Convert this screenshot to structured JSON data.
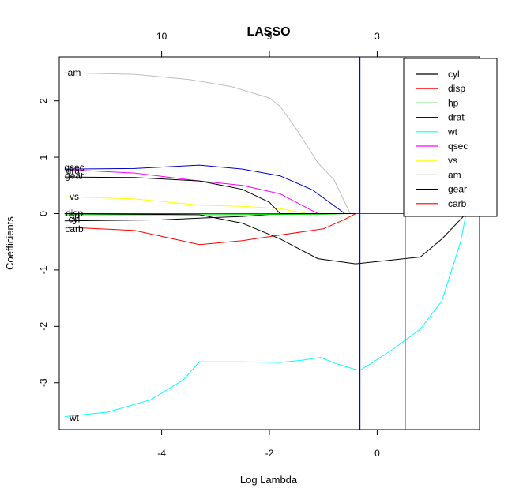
{
  "chart_data": {
    "type": "line",
    "title": "LASSO",
    "xlabel": "Log Lambda",
    "ylabel": "Coefficients",
    "xlim": [
      -5.9,
      1.9
    ],
    "ylim": [
      -3.83,
      2.78
    ],
    "x_ticks": [
      -4,
      -2,
      0
    ],
    "x_tick_labels": [
      "-4",
      "-2",
      "0"
    ],
    "y_ticks": [
      -3,
      -2,
      -1,
      0,
      1,
      2
    ],
    "y_tick_labels": [
      "-3",
      "-2",
      "-1",
      "0",
      "1",
      "2"
    ],
    "top_axis": {
      "ticks": [
        -4,
        -2,
        0
      ],
      "tick_labels": [
        "10",
        "9",
        "3"
      ]
    },
    "vlines": [
      {
        "x": -0.32,
        "color": "#0000ff"
      },
      {
        "x": 0.52,
        "color": "#cd0000"
      }
    ],
    "grid": false,
    "legend_position": "top-right",
    "series": [
      {
        "name": "cyl",
        "color": "#000000",
        "points": [
          [
            -5.8,
            -0.13
          ],
          [
            -4.0,
            -0.11
          ],
          [
            -3.3,
            -0.08
          ],
          [
            -2.5,
            -0.05
          ],
          [
            -1.8,
            0.0
          ],
          [
            1.9,
            0.0
          ]
        ],
        "label": "cyl",
        "label_y": -0.1
      },
      {
        "name": "disp",
        "color": "#ff0000",
        "points": [
          [
            -5.8,
            0.0
          ],
          [
            1.9,
            0.0
          ]
        ],
        "label": "disp",
        "label_y": 0.01
      },
      {
        "name": "hp",
        "color": "#00cd00",
        "points": [
          [
            -5.8,
            -0.02
          ],
          [
            -3.0,
            -0.02
          ],
          [
            -1.0,
            -0.01
          ],
          [
            -0.5,
            0.0
          ],
          [
            1.9,
            0.0
          ]
        ],
        "label": "hp",
        "label_y": -0.03
      },
      {
        "name": "drat",
        "color": "#0000cd",
        "points": [
          [
            -5.8,
            0.79
          ],
          [
            -4.5,
            0.8
          ],
          [
            -3.3,
            0.86
          ],
          [
            -2.5,
            0.79
          ],
          [
            -1.8,
            0.67
          ],
          [
            -1.2,
            0.42
          ],
          [
            -0.6,
            0.0
          ],
          [
            1.9,
            0.0
          ]
        ],
        "label": "drat",
        "label_y": 0.76
      },
      {
        "name": "wt",
        "color": "#00ffff",
        "points": [
          [
            -5.8,
            -3.6
          ],
          [
            -5.0,
            -3.52
          ],
          [
            -4.2,
            -3.3
          ],
          [
            -3.6,
            -2.95
          ],
          [
            -3.3,
            -2.63
          ],
          [
            -2.5,
            -2.63
          ],
          [
            -1.8,
            -2.64
          ],
          [
            -1.4,
            -2.6
          ],
          [
            -1.05,
            -2.55
          ],
          [
            -0.8,
            -2.65
          ],
          [
            -0.42,
            -2.76
          ],
          [
            -0.32,
            -2.78
          ],
          [
            -0.1,
            -2.65
          ],
          [
            0.3,
            -2.4
          ],
          [
            0.8,
            -2.05
          ],
          [
            1.2,
            -1.55
          ],
          [
            1.55,
            -0.5
          ],
          [
            1.65,
            0.0
          ],
          [
            1.9,
            0.0
          ]
        ],
        "label": "wt",
        "label_y": -3.62
      },
      {
        "name": "qsec",
        "color": "#ff00ff",
        "points": [
          [
            -5.8,
            0.78
          ],
          [
            -4.5,
            0.72
          ],
          [
            -3.3,
            0.58
          ],
          [
            -2.5,
            0.5
          ],
          [
            -1.8,
            0.35
          ],
          [
            -1.1,
            0.0
          ],
          [
            1.9,
            0.0
          ]
        ],
        "label": "qsec",
        "label_y": 0.82
      },
      {
        "name": "vs",
        "color": "#ffff00",
        "points": [
          [
            -5.8,
            0.3
          ],
          [
            -4.5,
            0.26
          ],
          [
            -3.3,
            0.15
          ],
          [
            -2.5,
            0.13
          ],
          [
            -1.8,
            0.09
          ],
          [
            -1.3,
            0.0
          ],
          [
            1.9,
            0.0
          ]
        ],
        "label": "vs",
        "label_y": 0.3
      },
      {
        "name": "am",
        "color": "#bebebe",
        "points": [
          [
            -5.8,
            2.5
          ],
          [
            -4.5,
            2.47
          ],
          [
            -3.5,
            2.38
          ],
          [
            -2.7,
            2.25
          ],
          [
            -2.0,
            2.05
          ],
          [
            -1.8,
            1.9
          ],
          [
            -1.5,
            1.5
          ],
          [
            -1.1,
            0.9
          ],
          [
            -0.8,
            0.6
          ],
          [
            -0.5,
            0.0
          ],
          [
            1.9,
            0.0
          ]
        ],
        "label": "am",
        "label_y": 2.5
      },
      {
        "name": "gear",
        "color": "#000000",
        "points": [
          [
            -5.8,
            0.65
          ],
          [
            -4.5,
            0.64
          ],
          [
            -3.3,
            0.58
          ],
          [
            -2.5,
            0.43
          ],
          [
            -2.0,
            0.2
          ],
          [
            -1.8,
            0.0
          ],
          [
            1.9,
            0.0
          ]
        ],
        "label": "gear",
        "label_y": 0.67
      },
      {
        "name": "carb",
        "color": "#ff0000",
        "points": [
          [
            -5.8,
            -0.24
          ],
          [
            -4.5,
            -0.3
          ],
          [
            -3.3,
            -0.55
          ],
          [
            -2.5,
            -0.48
          ],
          [
            -1.8,
            -0.38
          ],
          [
            -1.0,
            -0.27
          ],
          [
            -0.6,
            -0.1
          ],
          [
            -0.4,
            0.0
          ],
          [
            1.9,
            0.0
          ]
        ],
        "label": "carb",
        "label_y": -0.27
      },
      {
        "name": "",
        "color": "#000000",
        "points": [
          [
            -5.8,
            0.0
          ],
          [
            -3.3,
            -0.02
          ],
          [
            -2.5,
            -0.17
          ],
          [
            -1.8,
            -0.45
          ],
          [
            -1.1,
            -0.8
          ],
          [
            -0.4,
            -0.89
          ],
          [
            0.3,
            -0.82
          ],
          [
            0.8,
            -0.77
          ],
          [
            1.2,
            -0.45
          ],
          [
            1.55,
            -0.1
          ],
          [
            1.65,
            0.0
          ],
          [
            1.9,
            0.0
          ]
        ],
        "label": "",
        "label_y": 0
      }
    ]
  }
}
